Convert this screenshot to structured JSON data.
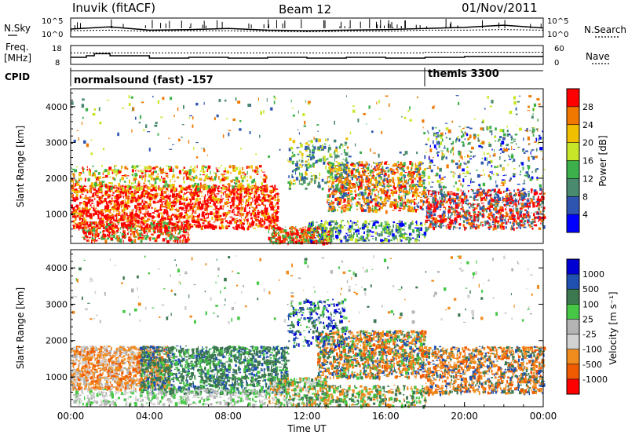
{
  "header": {
    "station": "Inuvik (fitACF)",
    "beam": "Beam 12",
    "date": "01/Nov/2011"
  },
  "side_labels": {
    "nsky": "N.Sky",
    "nsearch": "N.Search",
    "freq_line1": "Freq.",
    "freq_line2": "[MHz]",
    "nave": "Nave",
    "cpid": "CPID"
  },
  "cpid_segments": [
    {
      "start_hour": 0,
      "label": "normalsound (fast) -157"
    },
    {
      "start_hour": 18.0,
      "label": "themis 3300"
    }
  ],
  "colors": {
    "power_scale": [
      "#0000ff",
      "#2e56b0",
      "#4a8a6e",
      "#3cb04a",
      "#c8e628",
      "#f0c000",
      "#f07800",
      "#ff0000"
    ],
    "velocity_scale": [
      "#ff0000",
      "#f05a00",
      "#f08c1e",
      "#d2d2d2",
      "#b4b4b4",
      "#46c846",
      "#3c7850",
      "#2050b0",
      "#0000d2"
    ]
  },
  "chart_data": [
    {
      "type": "line",
      "name": "noise-panel",
      "x": [
        0,
        2,
        4,
        6,
        8,
        10,
        12,
        14,
        16,
        18,
        20,
        22,
        24
      ],
      "xlim": [
        0,
        24
      ],
      "series": [
        {
          "name": "N.Sky",
          "values": [
            2.5,
            2.9,
            2.3,
            2.4,
            2.6,
            2.3,
            2.2,
            2.3,
            2.4,
            2.6,
            2.8,
            3.2,
            2.7
          ]
        },
        {
          "name": "N.Search",
          "values": [
            2.2,
            2.3,
            2.1,
            2.2,
            2.2,
            2.1,
            2.0,
            2.1,
            2.1,
            2.3,
            2.3,
            2.4,
            2.3
          ]
        }
      ],
      "y_ticks_left": [
        "10^5",
        "10^0"
      ],
      "y_ticks_right": [
        "10^5",
        "10^0"
      ]
    },
    {
      "type": "line",
      "name": "frequency-panel",
      "x": [
        0,
        0.8,
        1.2,
        2.0,
        4.0,
        6.0,
        8.0,
        10.0,
        12.0,
        14.0,
        16.0,
        18.0,
        20.0,
        22.0,
        24.0
      ],
      "xlim": [
        0,
        24
      ],
      "series": [
        {
          "name": "Freq.",
          "values": [
            11.5,
            12.5,
            13.8,
            12.5,
            11.0,
            11.5,
            11.0,
            11.5,
            11.0,
            11.5,
            11.0,
            11.5,
            12.0,
            12.0,
            12.0
          ]
        },
        {
          "name": "Nave",
          "values": [
            38,
            38,
            38,
            38,
            38,
            38,
            38,
            38,
            38,
            38,
            38,
            40,
            40,
            40,
            40
          ]
        }
      ],
      "y_ticks_left": [
        "18",
        "8"
      ],
      "y_ticks_right": [
        "60",
        "0"
      ],
      "ylim_left": [
        8,
        18
      ],
      "ylim_right": [
        0,
        60
      ]
    },
    {
      "type": "heatmap",
      "name": "power-panel",
      "xlabel": "",
      "ylabel": "Slant Range [km]",
      "xlim": [
        0,
        24
      ],
      "ylim": [
        180,
        4500
      ],
      "y_ticks": [
        1000,
        2000,
        3000,
        4000
      ],
      "colorbar_label": "Power [dB]",
      "colorbar_ticks": [
        "4",
        "8",
        "12",
        "16",
        "20",
        "24",
        "28"
      ]
    },
    {
      "type": "heatmap",
      "name": "velocity-panel",
      "xlabel": "Time UT",
      "ylabel": "Slant Range [km]",
      "xlim": [
        0,
        24
      ],
      "ylim": [
        180,
        4500
      ],
      "y_ticks": [
        1000,
        2000,
        3000,
        4000
      ],
      "x_ticks": [
        "00:00",
        "04:00",
        "08:00",
        "12:00",
        "16:00",
        "20:00",
        "00:00"
      ],
      "colorbar_label": "Velocity [m s⁻¹]",
      "colorbar_ticks": [
        "-1000",
        "-500",
        "-100",
        "-25",
        "25",
        "100",
        "500",
        "1000"
      ]
    }
  ]
}
